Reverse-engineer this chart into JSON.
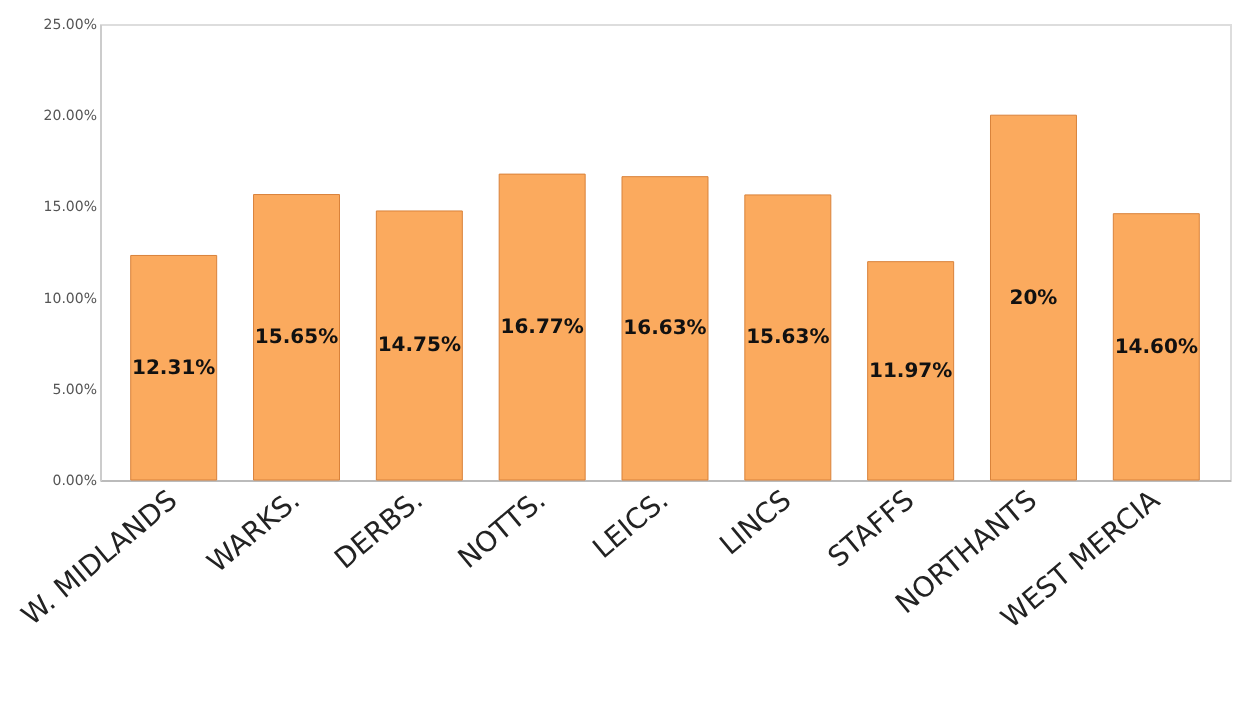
{
  "chart_data": {
    "type": "bar",
    "categories": [
      "W. MIDLANDS",
      "WARKS.",
      "DERBS.",
      "NOTTS.",
      "LEICS.",
      "LINCS",
      "STAFFS",
      "NORTHANTS",
      "WEST MERCIA"
    ],
    "values": [
      12.31,
      15.65,
      14.75,
      16.77,
      16.63,
      15.63,
      11.97,
      20,
      14.6
    ],
    "value_labels": [
      "12.31%",
      "15.65%",
      "14.75%",
      "16.77%",
      "16.63%",
      "15.63%",
      "11.97%",
      "20%",
      "14.60%"
    ],
    "color": "#fbaa5e",
    "ylim": [
      0,
      25
    ],
    "yticks": [
      {
        "value": 0,
        "label": "0.00%"
      },
      {
        "value": 5,
        "label": "5.00%"
      },
      {
        "value": 10,
        "label": "10.00%"
      },
      {
        "value": 15,
        "label": "15.00%"
      },
      {
        "value": 20,
        "label": "20.00%"
      },
      {
        "value": 25,
        "label": "25.00%"
      }
    ],
    "grid": false
  }
}
